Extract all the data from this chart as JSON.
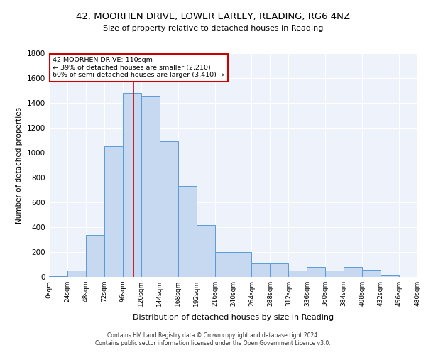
{
  "title": "42, MOORHEN DRIVE, LOWER EARLEY, READING, RG6 4NZ",
  "subtitle": "Size of property relative to detached houses in Reading",
  "xlabel": "Distribution of detached houses by size in Reading",
  "ylabel": "Number of detached properties",
  "bar_color": "#c6d9f1",
  "bar_edge_color": "#5b9bd5",
  "background_color": "#eef2fb",
  "grid_color": "#ffffff",
  "annotation_box_color": "#cc0000",
  "annotation_line_color": "#cc0000",
  "property_size": 110,
  "annotation_text_line1": "42 MOORHEN DRIVE: 110sqm",
  "annotation_text_line2": "← 39% of detached houses are smaller (2,210)",
  "annotation_text_line3": "60% of semi-detached houses are larger (3,410) →",
  "footer_line1": "Contains HM Land Registry data © Crown copyright and database right 2024.",
  "footer_line2": "Contains public sector information licensed under the Open Government Licence v3.0.",
  "bins": [
    0,
    24,
    48,
    72,
    96,
    120,
    144,
    168,
    192,
    216,
    240,
    264,
    288,
    312,
    336,
    360,
    384,
    408,
    432,
    456,
    480
  ],
  "bin_labels": [
    "0sqm",
    "24sqm",
    "48sqm",
    "72sqm",
    "96sqm",
    "120sqm",
    "144sqm",
    "168sqm",
    "192sqm",
    "216sqm",
    "240sqm",
    "264sqm",
    "288sqm",
    "312sqm",
    "336sqm",
    "360sqm",
    "384sqm",
    "408sqm",
    "432sqm",
    "456sqm",
    "480sqm"
  ],
  "counts": [
    5,
    50,
    340,
    1050,
    1480,
    1460,
    1090,
    730,
    420,
    200,
    200,
    110,
    110,
    50,
    80,
    50,
    80,
    60,
    10,
    0
  ],
  "ylim": [
    0,
    1800
  ],
  "yticks": [
    0,
    200,
    400,
    600,
    800,
    1000,
    1200,
    1400,
    1600,
    1800
  ]
}
